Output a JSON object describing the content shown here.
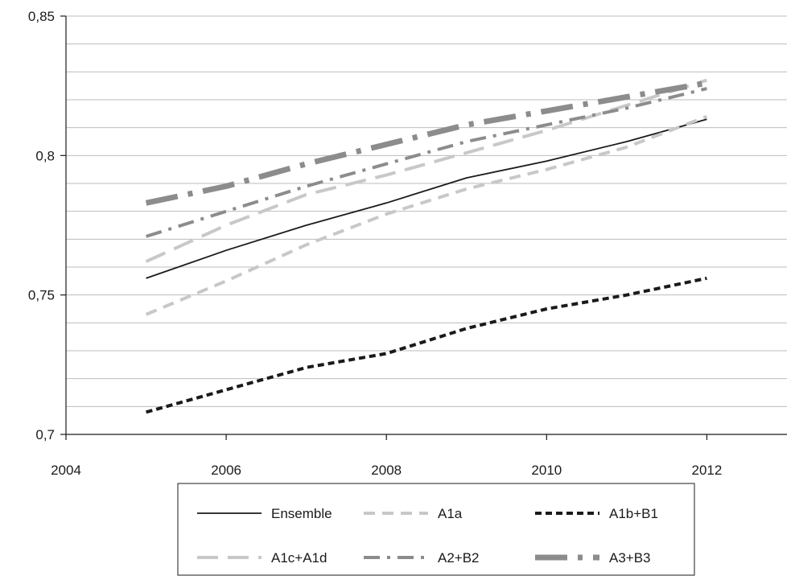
{
  "chart_data": {
    "type": "line",
    "title": "",
    "xlabel": "",
    "ylabel": "",
    "xlim": [
      2004,
      2013
    ],
    "ylim": [
      0.7,
      0.85
    ],
    "x_ticks": [
      2004,
      2006,
      2008,
      2010,
      2012
    ],
    "x_tick_labels": [
      "2004",
      "2006",
      "2008",
      "2010",
      "2012"
    ],
    "y_ticks": [
      0.7,
      0.75,
      0.8,
      0.85
    ],
    "y_tick_labels": [
      "0,7",
      "0,75",
      "0,8",
      "0,85"
    ],
    "y_minor_step": 0.01,
    "grid": "horizontal",
    "legend_position": "bottom",
    "x": [
      2005,
      2006,
      2007,
      2008,
      2009,
      2010,
      2011,
      2012
    ],
    "series": [
      {
        "name": "Ensemble",
        "values": [
          0.756,
          0.766,
          0.775,
          0.783,
          0.792,
          0.798,
          0.805,
          0.813
        ],
        "color": "#1a1a1a",
        "style": "solid"
      },
      {
        "name": "A1a",
        "values": [
          0.743,
          0.755,
          0.768,
          0.779,
          0.788,
          0.795,
          0.803,
          0.814
        ],
        "color": "#c8c8c8",
        "style": "dash"
      },
      {
        "name": "A1b+B1",
        "values": [
          0.708,
          0.716,
          0.724,
          0.729,
          0.738,
          0.745,
          0.75,
          0.756
        ],
        "color": "#1a1a1a",
        "style": "short-dash"
      },
      {
        "name": "A1c+A1d",
        "values": [
          0.762,
          0.775,
          0.786,
          0.793,
          0.801,
          0.809,
          0.818,
          0.827
        ],
        "color": "#c8c8c8",
        "style": "long-dash"
      },
      {
        "name": "A2+B2",
        "values": [
          0.771,
          0.78,
          0.789,
          0.797,
          0.805,
          0.811,
          0.817,
          0.824
        ],
        "color": "#8c8c8c",
        "style": "dash-dot"
      },
      {
        "name": "A3+B3",
        "values": [
          0.783,
          0.789,
          0.797,
          0.804,
          0.811,
          0.816,
          0.821,
          0.826
        ],
        "color": "#8c8c8c",
        "style": "long-dash-dot"
      }
    ]
  }
}
